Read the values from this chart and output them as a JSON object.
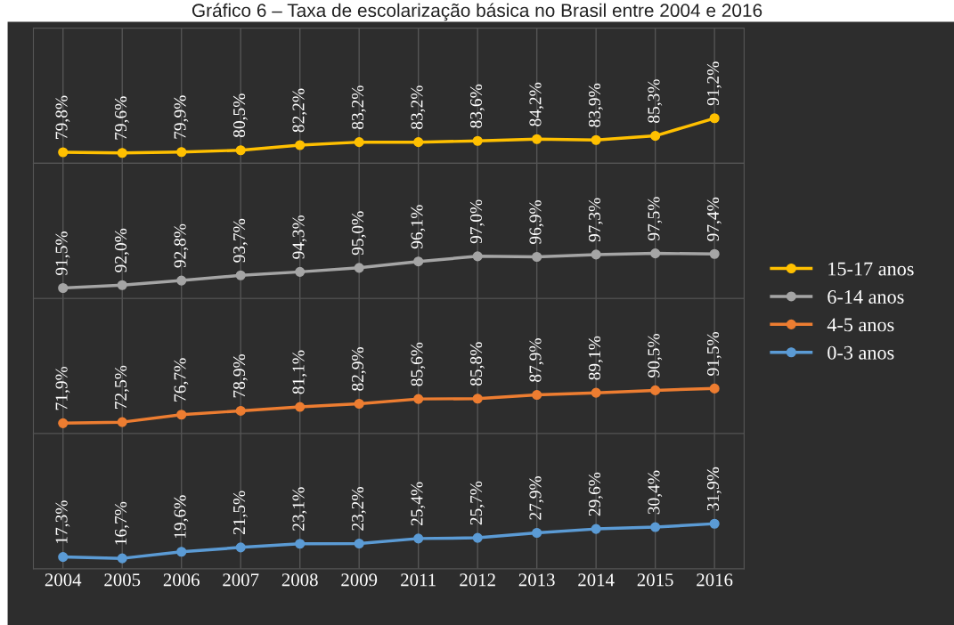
{
  "chart_data": [
    {
      "type": "line",
      "title": "Gráfico 6 – Taxa de escolarização básica no Brasil entre 2004 e 2016",
      "categories": [
        "2004",
        "2005",
        "2006",
        "2007",
        "2008",
        "2009",
        "2011",
        "2012",
        "2013",
        "2014",
        "2015",
        "2016"
      ],
      "tick_labels": false,
      "grid": "x",
      "legend": "right",
      "marker": "circle",
      "line_style": "solid",
      "series": [
        {
          "name": "15-17 anos",
          "color": "#ffc000",
          "values": [
            79.8,
            79.6,
            79.9,
            80.5,
            82.2,
            83.2,
            83.2,
            83.6,
            84.2,
            83.9,
            85.3,
            91.2
          ],
          "value_labels": [
            "79,8%",
            "79,6%",
            "79,9%",
            "80,5%",
            "82,2%",
            "83,2%",
            "83,2%",
            "83,6%",
            "84,2%",
            "83,9%",
            "85,3%",
            "91,2%"
          ]
        }
      ]
    },
    {
      "type": "line",
      "categories": [
        "2004",
        "2005",
        "2006",
        "2007",
        "2008",
        "2009",
        "2011",
        "2012",
        "2013",
        "2014",
        "2015",
        "2016"
      ],
      "tick_labels": false,
      "grid": "x",
      "legend": "right",
      "marker": "circle",
      "line_style": "solid",
      "series": [
        {
          "name": "6-14 anos",
          "color": "#a5a5a5",
          "values": [
            91.5,
            92.0,
            92.8,
            93.7,
            94.3,
            95.0,
            96.1,
            97.0,
            96.9,
            97.3,
            97.5,
            97.4
          ],
          "value_labels": [
            "91,5%",
            "92,0%",
            "92,8%",
            "93,7%",
            "94,3%",
            "95,0%",
            "96,1%",
            "97,0%",
            "96,9%",
            "97,3%",
            "97,5%",
            "97,4%"
          ]
        }
      ]
    },
    {
      "type": "line",
      "categories": [
        "2004",
        "2005",
        "2006",
        "2007",
        "2008",
        "2009",
        "2011",
        "2012",
        "2013",
        "2014",
        "2015",
        "2016"
      ],
      "tick_labels": false,
      "grid": "x",
      "legend": "right",
      "marker": "circle",
      "line_style": "solid",
      "series": [
        {
          "name": "4-5 anos",
          "color": "#ed7d31",
          "values": [
            71.9,
            72.5,
            76.7,
            78.9,
            81.1,
            82.9,
            85.6,
            85.8,
            87.9,
            89.1,
            90.5,
            91.5
          ],
          "value_labels": [
            "71,9%",
            "72,5%",
            "76,7%",
            "78,9%",
            "81,1%",
            "82,9%",
            "85,6%",
            "85,8%",
            "87,9%",
            "89,1%",
            "90,5%",
            "91,5%"
          ]
        }
      ]
    },
    {
      "type": "line",
      "categories": [
        "2004",
        "2005",
        "2006",
        "2007",
        "2008",
        "2009",
        "2011",
        "2012",
        "2013",
        "2014",
        "2015",
        "2016"
      ],
      "tick_labels": "x",
      "grid": "x",
      "legend": "right",
      "marker": "circle",
      "line_style": "solid",
      "series": [
        {
          "name": "0-3 anos",
          "color": "#5b9bd5",
          "values": [
            17.3,
            16.7,
            19.6,
            21.5,
            23.1,
            23.2,
            25.4,
            25.7,
            27.9,
            29.6,
            30.4,
            31.9
          ],
          "value_labels": [
            "17,3%",
            "16,7%",
            "19,6%",
            "21,5%",
            "23,1%",
            "23,2%",
            "25,4%",
            "25,7%",
            "27,9%",
            "29,6%",
            "30,4%",
            "31,9%"
          ]
        }
      ]
    }
  ]
}
